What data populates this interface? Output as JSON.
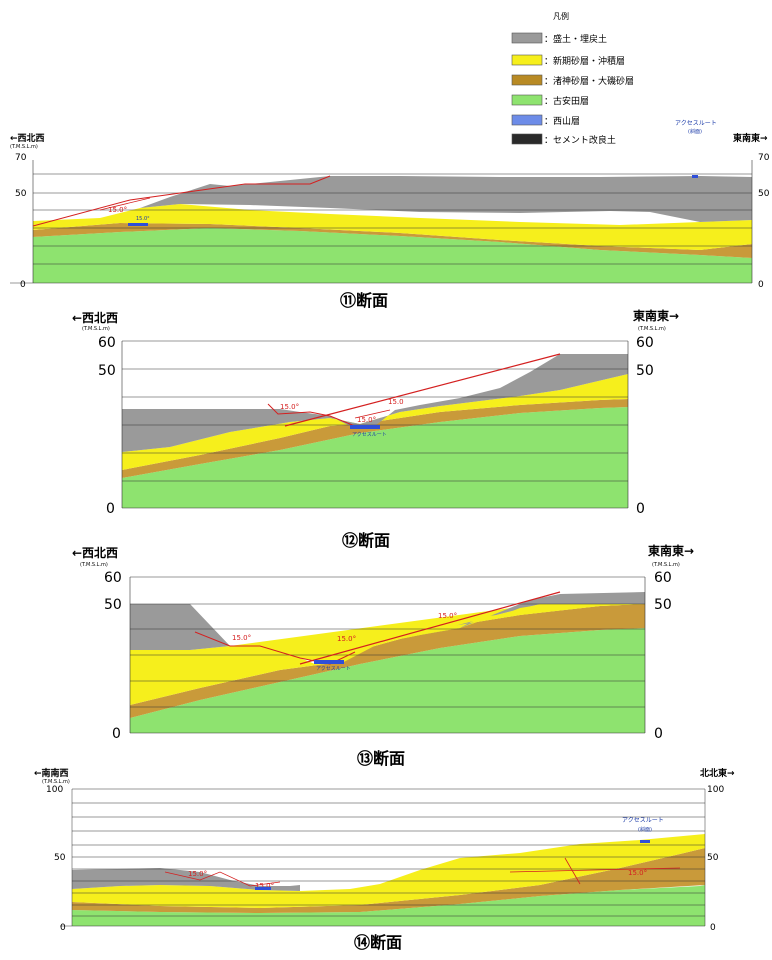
{
  "legend": {
    "title": "凡例",
    "items": [
      {
        "label": "：盛土・埋戻土",
        "color": "#9a9a9a"
      },
      {
        "label": "：新期砂層・沖積層",
        "color": "#f6ef1c"
      },
      {
        "label": "：渚神砂層・大磯砂層",
        "color": "#b88a24"
      },
      {
        "label": "：古安田層",
        "color": "#8ee36f"
      },
      {
        "label": "：西山層",
        "color": "#6d8ce8"
      },
      {
        "label": "：セメント改良土",
        "color": "#2a2a2a"
      }
    ]
  },
  "colors": {
    "fill": "#9a9a9a",
    "sand_new": "#f6ef1c",
    "sand_old": "#c99a3a",
    "koyasuda": "#8ee36f",
    "route": "#2f4fd8",
    "slope_line": "#d42020"
  },
  "sections": [
    {
      "caption": "⑪断面",
      "left_dir": "←西北西",
      "right_dir": "東南東→",
      "unit": "(T.M.S.L.m)",
      "ticks": {
        "top": "70",
        "mid": "50",
        "zero": "0"
      },
      "angles": [
        "15.0°",
        "15.0°"
      ],
      "route_label": "アクセスルート",
      "route_sub": "(斜面)"
    },
    {
      "caption": "⑫断面",
      "left_dir": "←西北西",
      "right_dir": "東南東→",
      "unit": "(T.M.S.L.m)",
      "ticks": {
        "top": "60",
        "mid": "50",
        "zero": "0"
      },
      "angles": [
        "15.0°",
        "15.0°",
        "15.0"
      ],
      "route_label": "アクセスルート"
    },
    {
      "caption": "⑬断面",
      "left_dir": "←西北西",
      "right_dir": "東南東→",
      "unit": "(T.M.S.L.m)",
      "ticks": {
        "top": "60",
        "mid": "50",
        "zero": "0"
      },
      "angles": [
        "15.0°",
        "15.0°",
        "15.0°"
      ],
      "route_label": "アクセスルート"
    },
    {
      "caption": "⑭断面",
      "left_dir": "←南南西",
      "right_dir": "北北東→",
      "unit": "(T.M.S.L.m)",
      "ticks": {
        "top": "100",
        "mid": "50",
        "zero": "0"
      },
      "angles": [
        "15.0°",
        "15.0°",
        "15.0°"
      ],
      "route_label": "アクセスルート",
      "route_sub": "(斜面)"
    }
  ]
}
